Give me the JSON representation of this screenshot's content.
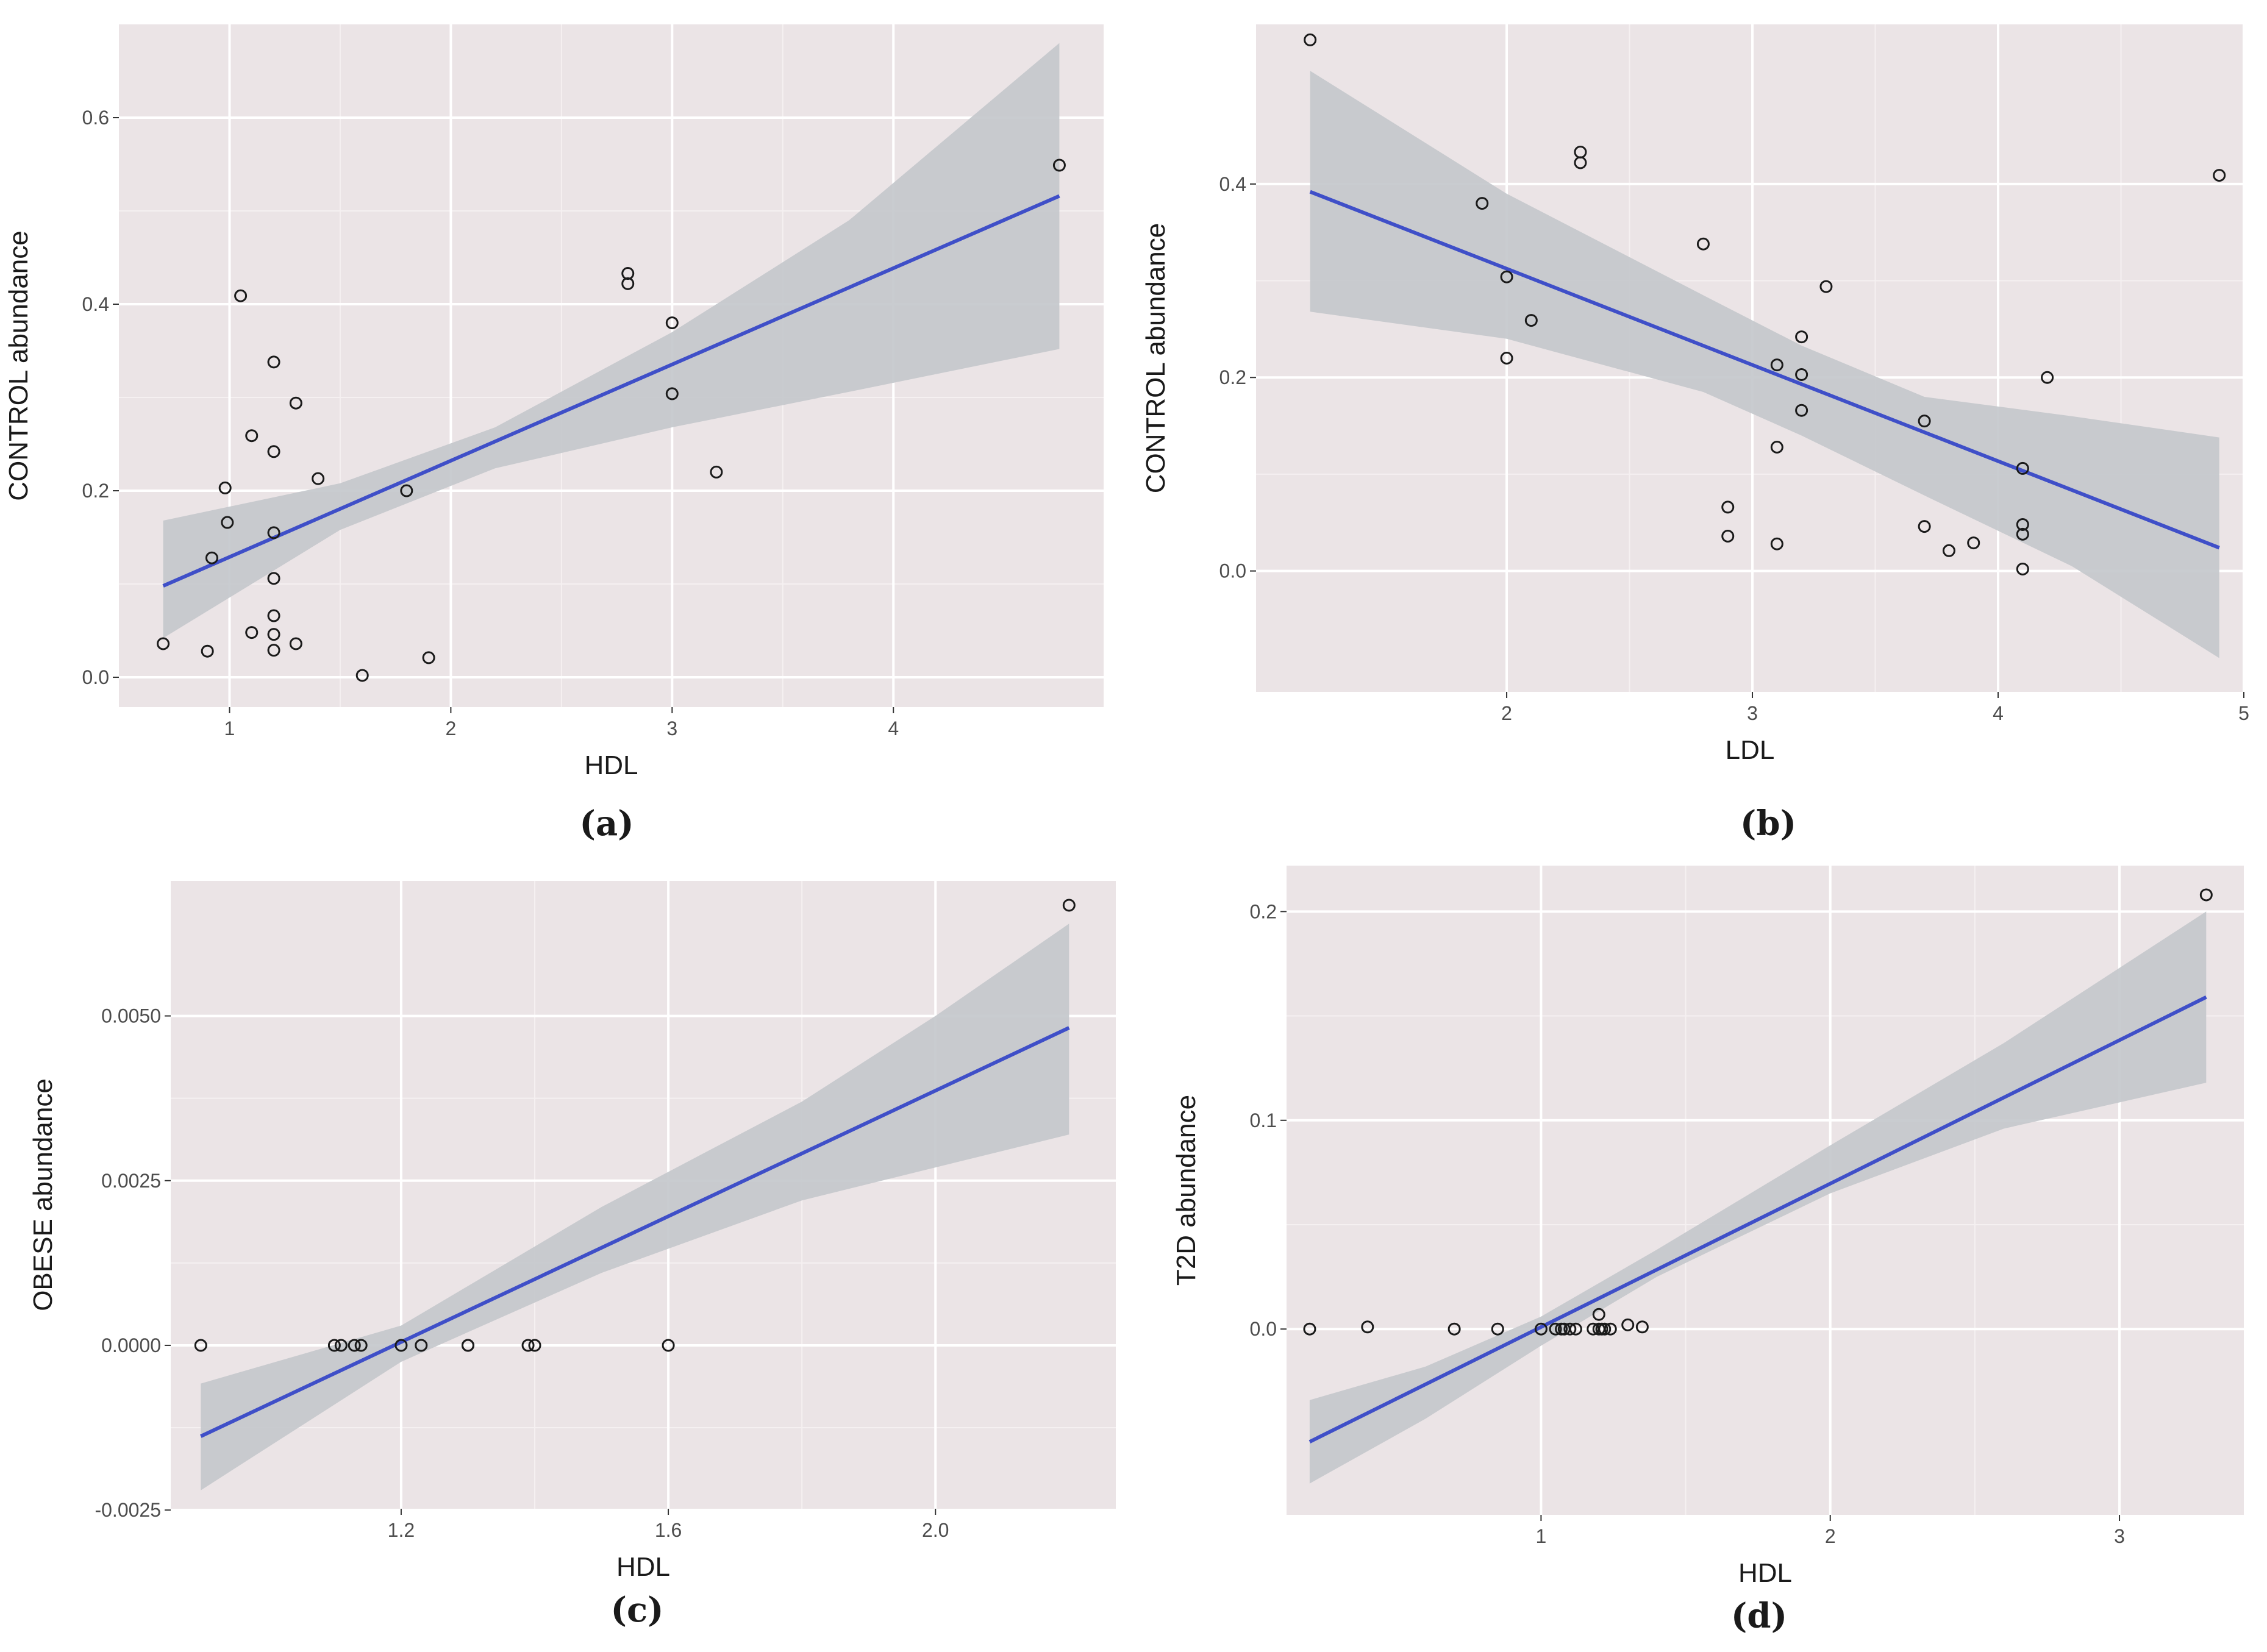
{
  "figure": {
    "panels": [
      "(a)",
      "(b)",
      "(c)",
      "(d)"
    ]
  },
  "style": {
    "panel_bg": "#ebe4e6",
    "grid_major": "#ffffff",
    "grid_minor": "#f5f0f1",
    "ribbon": "#c4c8cc",
    "line": "#3f4fc8",
    "point": "#1a1a1a"
  },
  "chart_data": [
    {
      "type": "scatter",
      "panel_label": "(a)",
      "xlabel": "HDL",
      "ylabel": "CONTROL abundance",
      "xlim": [
        0.5,
        4.95
      ],
      "ylim": [
        -0.032,
        0.7
      ],
      "xticks": [
        1,
        2,
        3,
        4
      ],
      "xtick_labels": [
        "1",
        "2",
        "3",
        "4"
      ],
      "yticks": [
        0,
        0.2,
        0.4,
        0.6
      ],
      "ytick_labels": [
        "0.0",
        "0.2",
        "0.4",
        "0.6"
      ],
      "points": [
        [
          0.7,
          0.036
        ],
        [
          0.9,
          0.028
        ],
        [
          0.92,
          0.128
        ],
        [
          0.98,
          0.203
        ],
        [
          0.99,
          0.166
        ],
        [
          1.05,
          0.409
        ],
        [
          1.1,
          0.259
        ],
        [
          1.1,
          0.048
        ],
        [
          1.2,
          0.338
        ],
        [
          1.2,
          0.242
        ],
        [
          1.2,
          0.155
        ],
        [
          1.2,
          0.106
        ],
        [
          1.2,
          0.066
        ],
        [
          1.2,
          0.046
        ],
        [
          1.2,
          0.029
        ],
        [
          1.3,
          0.294
        ],
        [
          1.3,
          0.036
        ],
        [
          1.4,
          0.213
        ],
        [
          1.6,
          0.002
        ],
        [
          1.8,
          0.2
        ],
        [
          1.9,
          0.021
        ],
        [
          2.8,
          0.433
        ],
        [
          2.8,
          0.422
        ],
        [
          3.0,
          0.38
        ],
        [
          3.0,
          0.304
        ],
        [
          3.2,
          0.22
        ],
        [
          4.75,
          0.549
        ]
      ],
      "fit": {
        "x": [
          0.7,
          4.75
        ],
        "y": [
          0.098,
          0.516
        ]
      },
      "band": {
        "x": [
          0.7,
          1.5,
          2.2,
          3.0,
          3.8,
          4.75
        ],
        "lower": [
          0.042,
          0.158,
          0.224,
          0.268,
          0.306,
          0.352
        ],
        "upper": [
          0.168,
          0.208,
          0.268,
          0.37,
          0.49,
          0.68
        ]
      }
    },
    {
      "type": "scatter",
      "panel_label": "(b)",
      "xlabel": "LDL",
      "ylabel": "CONTROL abundance",
      "xlim": [
        0.98,
        5.0
      ],
      "ylim": [
        -0.125,
        0.565
      ],
      "xticks": [
        2,
        3,
        4,
        5
      ],
      "xtick_labels": [
        "2",
        "3",
        "4",
        "5"
      ],
      "yticks": [
        0,
        0.2,
        0.4
      ],
      "ytick_labels": [
        "0.0",
        "0.2",
        "0.4"
      ],
      "points": [
        [
          1.2,
          0.549
        ],
        [
          1.9,
          0.38
        ],
        [
          2.0,
          0.304
        ],
        [
          2.0,
          0.22
        ],
        [
          2.1,
          0.259
        ],
        [
          2.3,
          0.433
        ],
        [
          2.3,
          0.422
        ],
        [
          2.8,
          0.338
        ],
        [
          2.9,
          0.066
        ],
        [
          2.9,
          0.036
        ],
        [
          3.1,
          0.213
        ],
        [
          3.1,
          0.128
        ],
        [
          3.1,
          0.028
        ],
        [
          3.2,
          0.242
        ],
        [
          3.2,
          0.203
        ],
        [
          3.2,
          0.166
        ],
        [
          3.3,
          0.294
        ],
        [
          3.7,
          0.155
        ],
        [
          3.7,
          0.046
        ],
        [
          3.8,
          0.021
        ],
        [
          3.9,
          0.029
        ],
        [
          4.1,
          0.106
        ],
        [
          4.1,
          0.048
        ],
        [
          4.1,
          0.038
        ],
        [
          4.1,
          0.002
        ],
        [
          4.2,
          0.2
        ],
        [
          4.9,
          0.409
        ]
      ],
      "fit": {
        "x": [
          1.2,
          4.9
        ],
        "y": [
          0.392,
          0.024
        ]
      },
      "band": {
        "x": [
          1.2,
          2.0,
          2.8,
          3.2,
          3.7,
          4.3,
          4.9
        ],
        "lower": [
          0.268,
          0.24,
          0.185,
          0.14,
          0.078,
          0.005,
          -0.09
        ],
        "upper": [
          0.517,
          0.39,
          0.285,
          0.233,
          0.18,
          0.16,
          0.138
        ]
      }
    },
    {
      "type": "scatter",
      "panel_label": "(c)",
      "xlabel": "HDL",
      "ylabel": "OBESE abundance",
      "xlim": [
        0.855,
        2.27
      ],
      "ylim": [
        -0.00248,
        0.00705
      ],
      "xticks": [
        1.2,
        1.6,
        2.0
      ],
      "xtick_labels": [
        "1.2",
        "1.6",
        "2.0"
      ],
      "yticks": [
        -0.0025,
        0,
        0.0025,
        0.005
      ],
      "ytick_labels": [
        "-0.0025",
        "0.0000",
        "0.0025",
        "0.0050"
      ],
      "points": [
        [
          0.9,
          0
        ],
        [
          1.1,
          0
        ],
        [
          1.11,
          0
        ],
        [
          1.13,
          0
        ],
        [
          1.14,
          0
        ],
        [
          1.2,
          0
        ],
        [
          1.23,
          0
        ],
        [
          1.3,
          0
        ],
        [
          1.3,
          0
        ],
        [
          1.39,
          0
        ],
        [
          1.4,
          0
        ],
        [
          1.6,
          0
        ],
        [
          2.2,
          0.00668
        ]
      ],
      "fit": {
        "x": [
          0.9,
          2.2
        ],
        "y": [
          -0.00138,
          0.00482
        ]
      },
      "band": {
        "x": [
          0.9,
          1.2,
          1.5,
          1.8,
          2.0,
          2.2
        ],
        "lower": [
          -0.0022,
          -0.00025,
          0.0011,
          0.0022,
          0.0027,
          0.0032
        ],
        "upper": [
          -0.00058,
          0.0003,
          0.0021,
          0.0037,
          0.005,
          0.0064
        ]
      }
    },
    {
      "type": "scatter",
      "panel_label": "(d)",
      "xlabel": "HDL",
      "ylabel": "T2D abundance",
      "xlim": [
        0.12,
        3.43
      ],
      "ylim": [
        -0.089,
        0.222
      ],
      "xticks": [
        1,
        2,
        3
      ],
      "xtick_labels": [
        "1",
        "2",
        "3"
      ],
      "yticks": [
        0,
        0.1,
        0.2
      ],
      "ytick_labels": [
        "0.0",
        "0.1",
        "0.2"
      ],
      "points": [
        [
          0.2,
          0
        ],
        [
          0.4,
          0.001
        ],
        [
          0.7,
          0
        ],
        [
          0.85,
          0
        ],
        [
          1.0,
          0
        ],
        [
          1.05,
          0
        ],
        [
          1.07,
          0
        ],
        [
          1.08,
          0
        ],
        [
          1.1,
          0
        ],
        [
          1.12,
          0
        ],
        [
          1.18,
          0
        ],
        [
          1.2,
          0
        ],
        [
          1.2,
          0.007
        ],
        [
          1.21,
          0
        ],
        [
          1.22,
          0
        ],
        [
          1.24,
          0
        ],
        [
          1.3,
          0.002
        ],
        [
          1.35,
          0.001
        ],
        [
          3.3,
          0.208
        ]
      ],
      "fit": {
        "x": [
          0.2,
          3.3
        ],
        "y": [
          -0.054,
          0.159
        ]
      },
      "band": {
        "x": [
          0.2,
          0.6,
          1.0,
          1.4,
          2.0,
          2.6,
          3.3
        ],
        "lower": [
          -0.074,
          -0.043,
          -0.008,
          0.025,
          0.065,
          0.096,
          0.118
        ],
        "upper": [
          -0.034,
          -0.018,
          0.006,
          0.038,
          0.088,
          0.137,
          0.2
        ]
      }
    }
  ]
}
